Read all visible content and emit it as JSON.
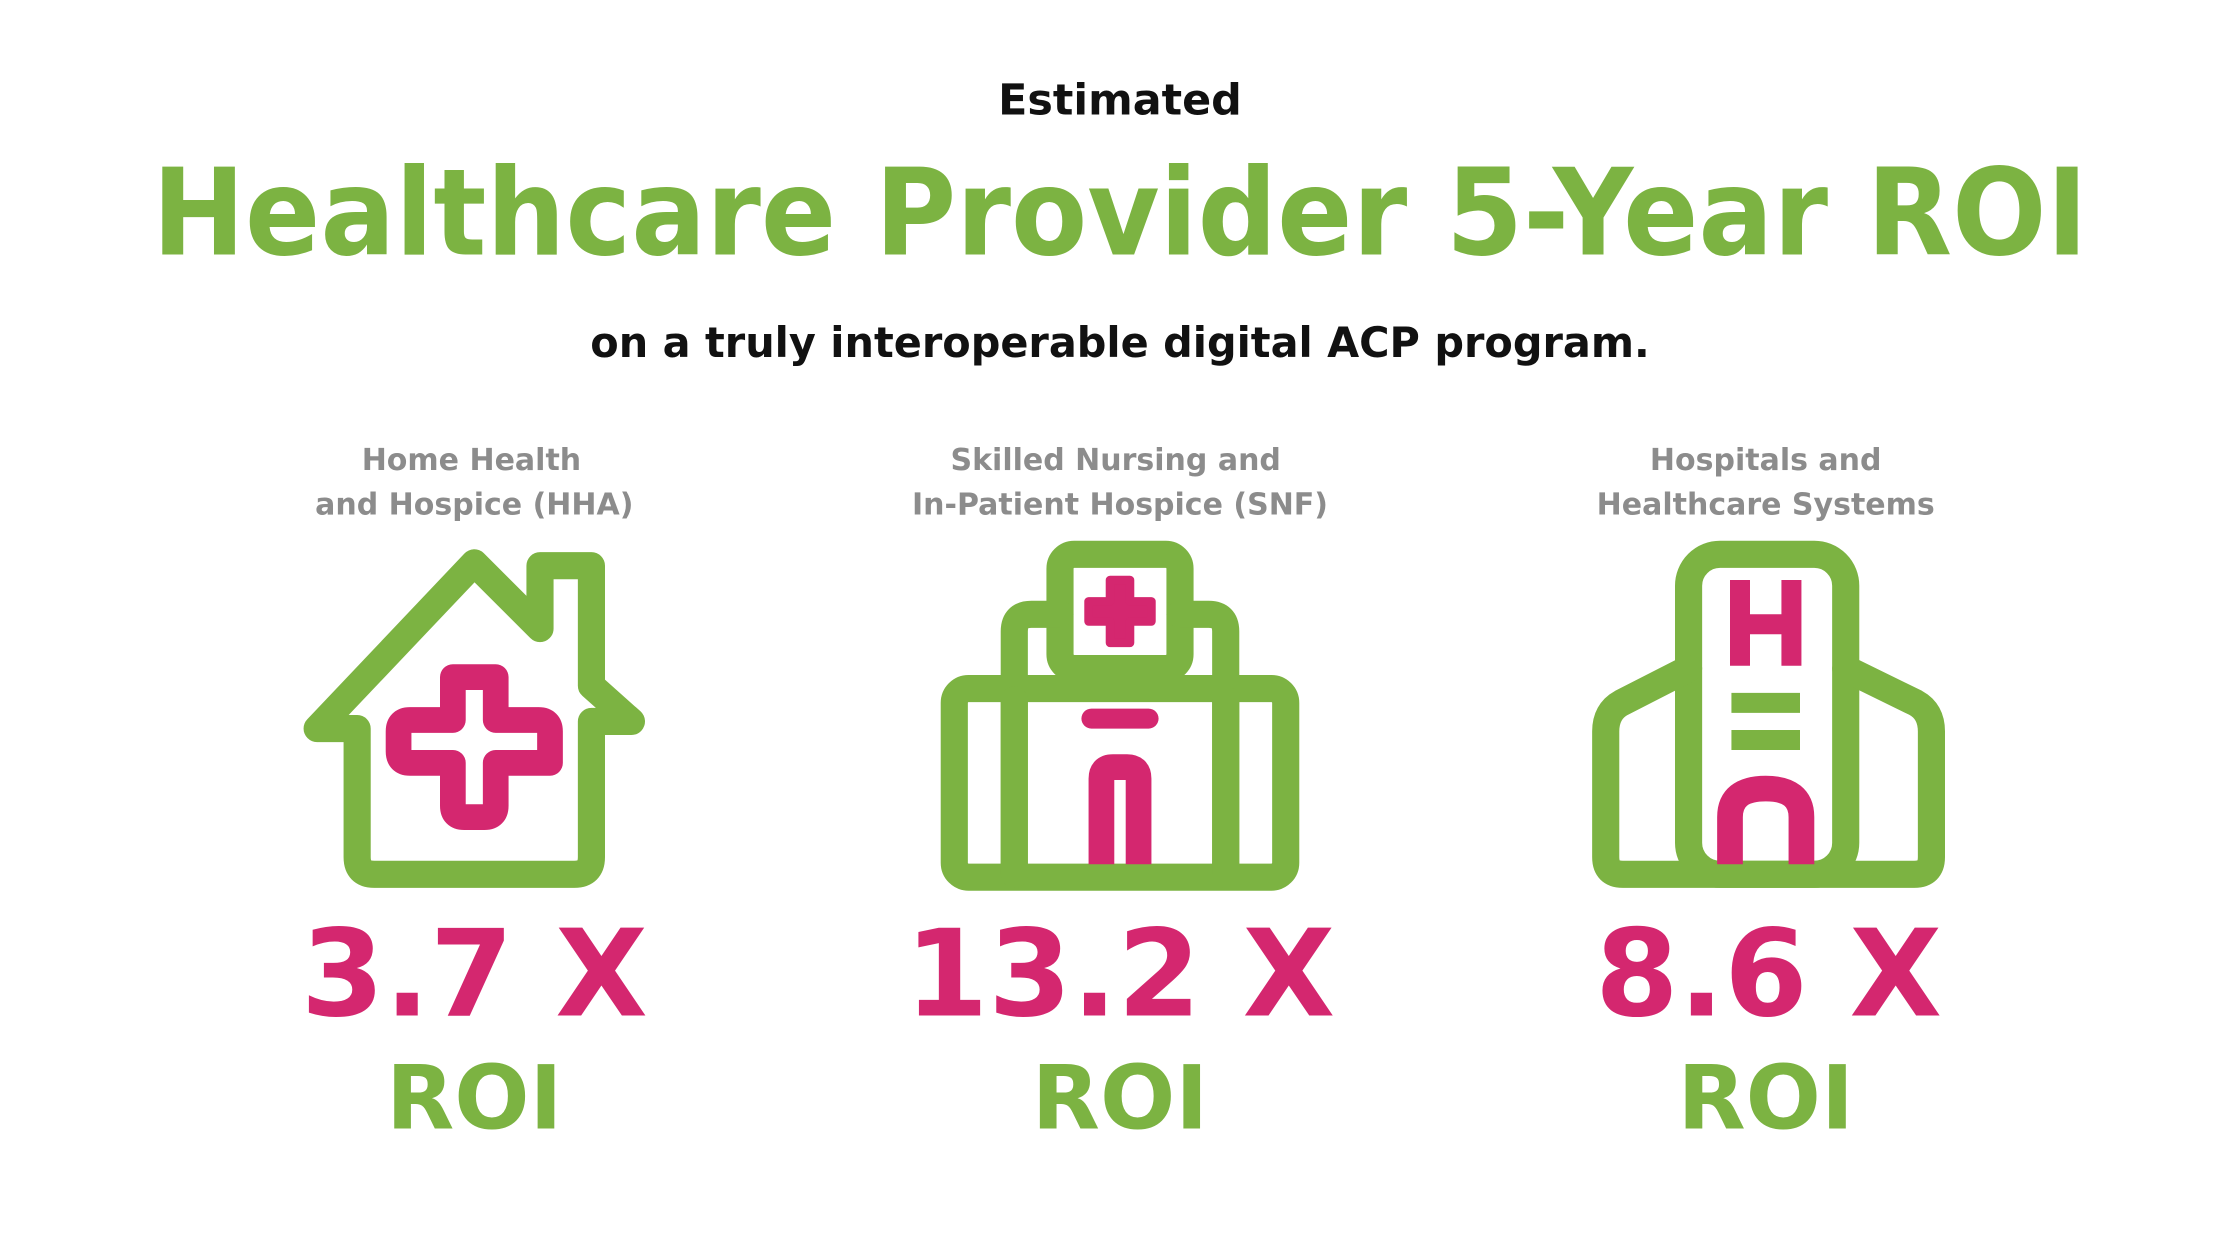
{
  "header": {
    "kicker": "Estimated",
    "title": "Healthcare Provider 5-Year ROI",
    "subtitle": "on a truly interoperable digital ACP program."
  },
  "items": [
    {
      "label": [
        "Home Health",
        "and Hospice (HHA)"
      ],
      "value": "3.7 X",
      "unit": "ROI"
    },
    {
      "label": [
        "Skilled Nursing and",
        "In-Patient Hospice (SNF)"
      ],
      "value": "13.2 X",
      "unit": "ROI"
    },
    {
      "label": [
        "Hospitals and",
        "Healthcare Systems"
      ],
      "value": "8.6 X",
      "unit": "ROI"
    }
  ]
}
